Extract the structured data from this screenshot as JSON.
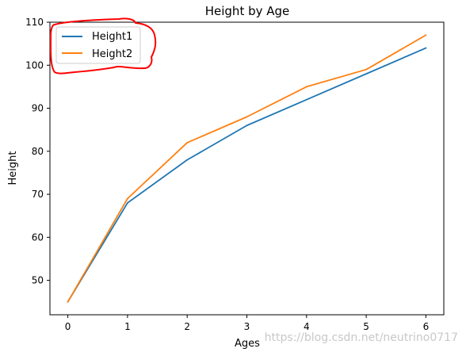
{
  "chart_data": {
    "type": "line",
    "title": "Height by Age",
    "xlabel": "Ages",
    "ylabel": "Height",
    "x": [
      0,
      1,
      2,
      3,
      4,
      5,
      6
    ],
    "xlim": [
      -0.3,
      6.3
    ],
    "ylim": [
      42,
      110
    ],
    "xticks": [
      0,
      1,
      2,
      3,
      4,
      5,
      6
    ],
    "yticks": [
      50,
      60,
      70,
      80,
      90,
      100,
      110
    ],
    "grid": false,
    "legend_position": "upper-left",
    "series": [
      {
        "name": "Height1",
        "color": "#1f77b4",
        "values": [
          45,
          68,
          78,
          86,
          92,
          98,
          104
        ]
      },
      {
        "name": "Height2",
        "color": "#ff7f0e",
        "values": [
          45,
          69,
          82,
          88,
          95,
          99,
          107
        ]
      }
    ],
    "annotations": [
      {
        "kind": "freehand-circle",
        "target": "legend",
        "color": "#ff0000"
      }
    ]
  },
  "watermark": "https://blog.csdn.net/neutrino0717"
}
